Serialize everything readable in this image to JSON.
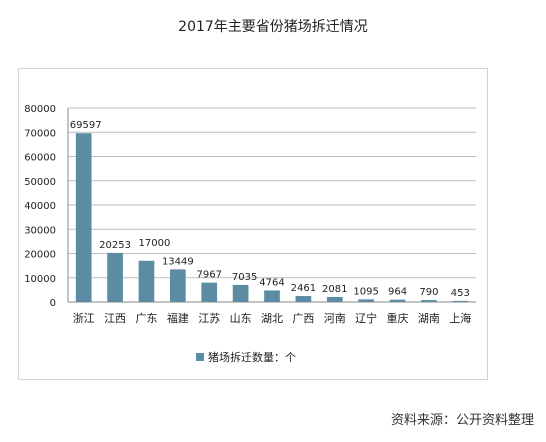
{
  "title": "2017年主要省份猪场拆迁情况",
  "source": "资料来源：公开资料整理",
  "chart_data": {
    "type": "bar",
    "categories": [
      "浙江",
      "江西",
      "广东",
      "福建",
      "江苏",
      "山东",
      "湖北",
      "广西",
      "河南",
      "辽宁",
      "重庆",
      "湖南",
      "上海"
    ],
    "series": [
      {
        "name": "猪场拆迁数量：个",
        "values": [
          69597,
          20253,
          17000,
          13449,
          7967,
          7035,
          4764,
          2461,
          2081,
          1095,
          964,
          790,
          453
        ],
        "color": "#5b8ca3"
      }
    ],
    "yticks": [
      "0",
      "10000",
      "20000",
      "30000",
      "40000",
      "50000",
      "60000",
      "70000",
      "80000"
    ],
    "ylim": [
      0,
      80000
    ],
    "grid": true,
    "legend_position": "bottom"
  }
}
